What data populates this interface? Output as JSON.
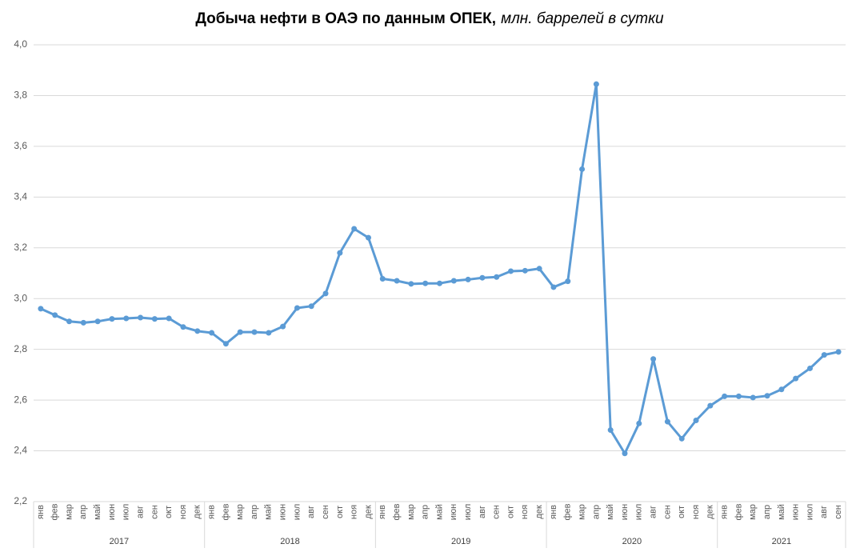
{
  "chart_data": {
    "type": "line",
    "title": "Добыча нефти в ОАЭ по данным ОПЕК,",
    "subtitle": "млн. баррелей в сутки",
    "groups": [
      {
        "label": "2017",
        "categories": [
          "янв",
          "фев",
          "мар",
          "апр",
          "май",
          "июн",
          "июл",
          "авг",
          "сен",
          "окт",
          "ноя",
          "дек"
        ]
      },
      {
        "label": "2018",
        "categories": [
          "янв",
          "фев",
          "мар",
          "апр",
          "май",
          "июн",
          "июл",
          "авг",
          "сен",
          "окт",
          "ноя",
          "дек"
        ]
      },
      {
        "label": "2019",
        "categories": [
          "янв",
          "фев",
          "мар",
          "апр",
          "май",
          "июн",
          "июл",
          "авг",
          "сен",
          "окт",
          "ноя",
          "дек"
        ]
      },
      {
        "label": "2020",
        "categories": [
          "янв",
          "фев",
          "мар",
          "апр",
          "май",
          "июн",
          "июл",
          "авг",
          "сен",
          "окт",
          "ноя",
          "дек"
        ]
      },
      {
        "label": "2021",
        "categories": [
          "янв",
          "фев",
          "мар",
          "апр",
          "май",
          "июн",
          "июл",
          "авг",
          "сен"
        ]
      }
    ],
    "color": "#5b9bd5",
    "values": [
      2.96,
      2.935,
      2.91,
      2.905,
      2.91,
      2.92,
      2.922,
      2.925,
      2.92,
      2.922,
      2.888,
      2.872,
      2.865,
      2.822,
      2.868,
      2.868,
      2.865,
      2.89,
      2.963,
      2.97,
      3.02,
      3.18,
      3.275,
      3.24,
      3.078,
      3.07,
      3.058,
      3.06,
      3.06,
      3.07,
      3.075,
      3.082,
      3.085,
      3.108,
      3.11,
      3.118,
      3.045,
      3.068,
      3.51,
      3.845,
      2.482,
      2.39,
      2.508,
      2.762,
      2.515,
      2.448,
      2.52,
      2.578,
      2.615,
      2.615,
      2.61,
      2.617,
      2.642,
      2.685,
      2.725,
      2.778,
      2.79
    ],
    "ylim": [
      2.2,
      4.0
    ],
    "yticks": [
      {
        "value": 2.2,
        "label": "2,2"
      },
      {
        "value": 2.4,
        "label": "2,4"
      },
      {
        "value": 2.6,
        "label": "2,6"
      },
      {
        "value": 2.8,
        "label": "2,8"
      },
      {
        "value": 3.0,
        "label": "3,0"
      },
      {
        "value": 3.2,
        "label": "3,2"
      },
      {
        "value": 3.4,
        "label": "3,4"
      },
      {
        "value": 3.6,
        "label": "3,6"
      },
      {
        "value": 3.8,
        "label": "3,8"
      },
      {
        "value": 4.0,
        "label": "4,0"
      }
    ],
    "grid": true
  }
}
